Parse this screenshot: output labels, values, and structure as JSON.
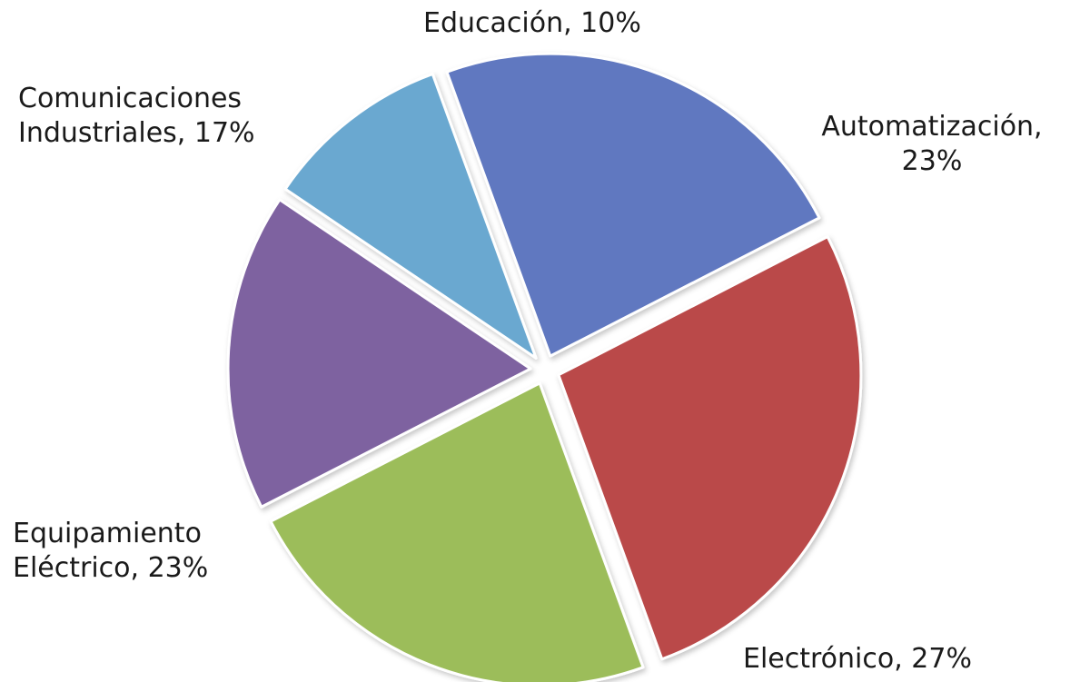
{
  "chart_data": {
    "type": "pie",
    "title": "",
    "exploded": true,
    "start_angle_deg": -20,
    "direction": "clockwise",
    "slices": [
      {
        "category": "Automatización",
        "value": 23,
        "label_lines": [
          "Automatización,",
          "23%"
        ],
        "color": "#6078C0"
      },
      {
        "category": "Electrónico",
        "value": 27,
        "label_lines": [
          "Electrónico, 27%"
        ],
        "color": "#BA4A4A"
      },
      {
        "category": "Equipamiento Eléctrico",
        "value": 23,
        "label_lines": [
          "Equipamiento",
          "Eléctrico, 23%"
        ],
        "color": "#9CBD5A"
      },
      {
        "category": "Comunicaciones Industriales",
        "value": 17,
        "label_lines": [
          "Comunicaciones",
          "Industriales, 17%"
        ],
        "color": "#7E62A0"
      },
      {
        "category": "Educación",
        "value": 10,
        "label_lines": [
          "Educación, 10%"
        ],
        "color": "#6AA8D0"
      }
    ]
  }
}
